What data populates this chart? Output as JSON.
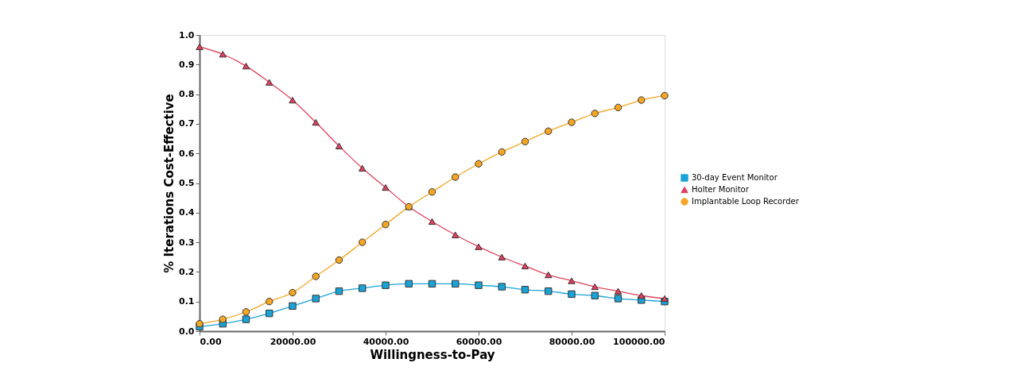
{
  "chart_data": {
    "type": "line",
    "xlabel": "Willingness-to-Pay",
    "ylabel": "% Iterations Cost-Effective",
    "x": [
      0,
      5000,
      10000,
      15000,
      20000,
      25000,
      30000,
      35000,
      40000,
      45000,
      50000,
      55000,
      60000,
      65000,
      70000,
      75000,
      80000,
      85000,
      90000,
      95000,
      100000
    ],
    "series": [
      {
        "name": "30-day Event Monitor",
        "color": "#1ba3d8",
        "marker": "square",
        "values": [
          0.015,
          0.025,
          0.04,
          0.06,
          0.085,
          0.11,
          0.135,
          0.145,
          0.155,
          0.16,
          0.16,
          0.16,
          0.155,
          0.15,
          0.14,
          0.135,
          0.125,
          0.12,
          0.11,
          0.105,
          0.1
        ]
      },
      {
        "name": "Holter Monitor",
        "color": "#e0405e",
        "marker": "triangle",
        "values": [
          0.96,
          0.935,
          0.895,
          0.84,
          0.78,
          0.705,
          0.625,
          0.55,
          0.485,
          0.42,
          0.37,
          0.325,
          0.285,
          0.25,
          0.22,
          0.19,
          0.17,
          0.15,
          0.135,
          0.12,
          0.11
        ]
      },
      {
        "name": "Implantable Loop Recorder",
        "color": "#f5a623",
        "marker": "circle",
        "values": [
          0.025,
          0.04,
          0.065,
          0.1,
          0.13,
          0.185,
          0.24,
          0.3,
          0.36,
          0.42,
          0.47,
          0.52,
          0.565,
          0.605,
          0.64,
          0.675,
          0.705,
          0.735,
          0.755,
          0.78,
          0.795
        ]
      }
    ],
    "xlim": [
      0,
      100000
    ],
    "xticks": [
      {
        "value": 0,
        "label": "0.00"
      },
      {
        "value": 20000,
        "label": "20000.00"
      },
      {
        "value": 40000,
        "label": "40000.00"
      },
      {
        "value": 60000,
        "label": "60000.00"
      },
      {
        "value": 80000,
        "label": "80000.00"
      },
      {
        "value": 100000,
        "label": "100000.00"
      }
    ],
    "ylim": [
      0,
      1
    ],
    "yticks": [
      {
        "value": 0,
        "label": "0.0"
      },
      {
        "value": 0.1,
        "label": "0.1"
      },
      {
        "value": 0.2,
        "label": "0.2"
      },
      {
        "value": 0.3,
        "label": "0.3"
      },
      {
        "value": 0.4,
        "label": "0.4"
      },
      {
        "value": 0.5,
        "label": "0.5"
      },
      {
        "value": 0.6,
        "label": "0.6"
      },
      {
        "value": 0.7,
        "label": "0.7"
      },
      {
        "value": 0.8,
        "label": "0.8"
      },
      {
        "value": 0.9,
        "label": "0.9"
      },
      {
        "value": 1.0,
        "label": "1.0"
      }
    ],
    "grid": false,
    "legend": "right",
    "line_style": "solid"
  }
}
